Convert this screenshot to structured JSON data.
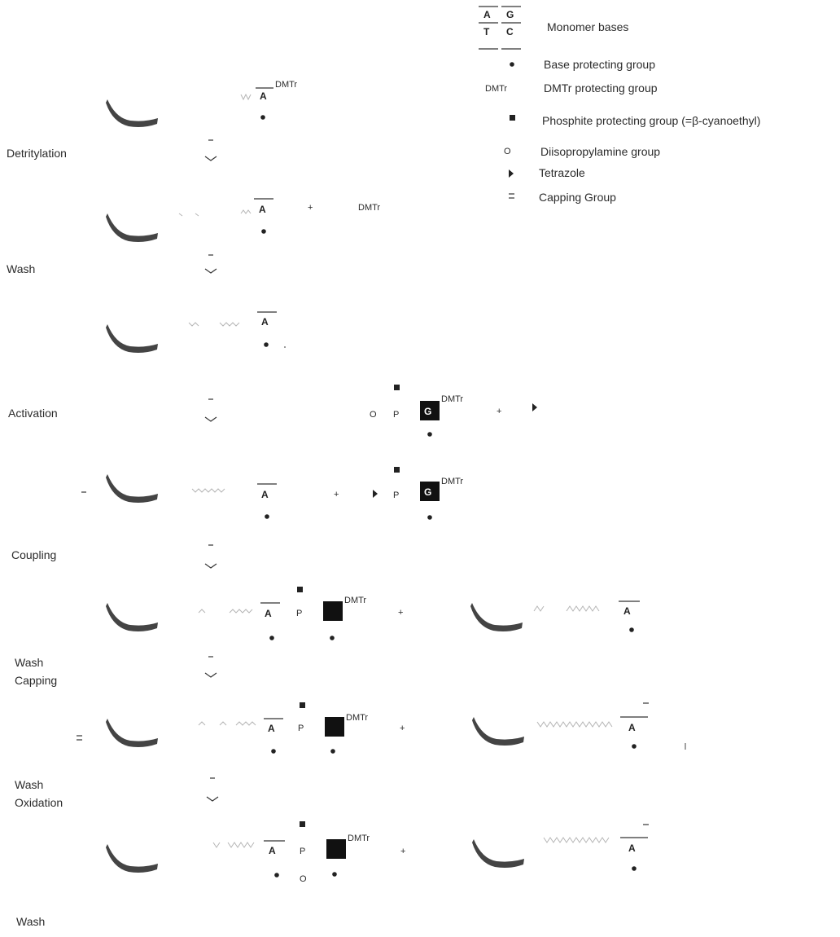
{
  "legend": {
    "bases": [
      "A",
      "G",
      "T",
      "C"
    ],
    "items": [
      {
        "symbol": "",
        "label": "Monomer bases"
      },
      {
        "symbol": "•",
        "label": "Base protecting group"
      },
      {
        "symbol": "DMTr",
        "label": "DMTr protecting group"
      },
      {
        "symbol": "■",
        "label": "Phosphite protecting group (=β-cyanoethyl)"
      },
      {
        "symbol": "O",
        "label": "Diisopropylamine group"
      },
      {
        "symbol": "▸",
        "label": "Tetrazole"
      },
      {
        "symbol": "=",
        "label": "Capping Group"
      }
    ]
  },
  "steps": {
    "detritylation": "Detritylation",
    "wash1": "Wash",
    "activation": "Activation",
    "coupling": "Coupling",
    "wash_capping": [
      "Wash",
      "Capping"
    ],
    "wash_oxidation": [
      "Wash",
      "Oxidation"
    ],
    "wash_final": "Wash"
  },
  "glyphs": {
    "dmtr": "DMTr",
    "base_a": "A",
    "base_g": "G",
    "phosphorus": "P",
    "diisopropylamine": "O",
    "plus": "+",
    "base_protect": "•"
  }
}
